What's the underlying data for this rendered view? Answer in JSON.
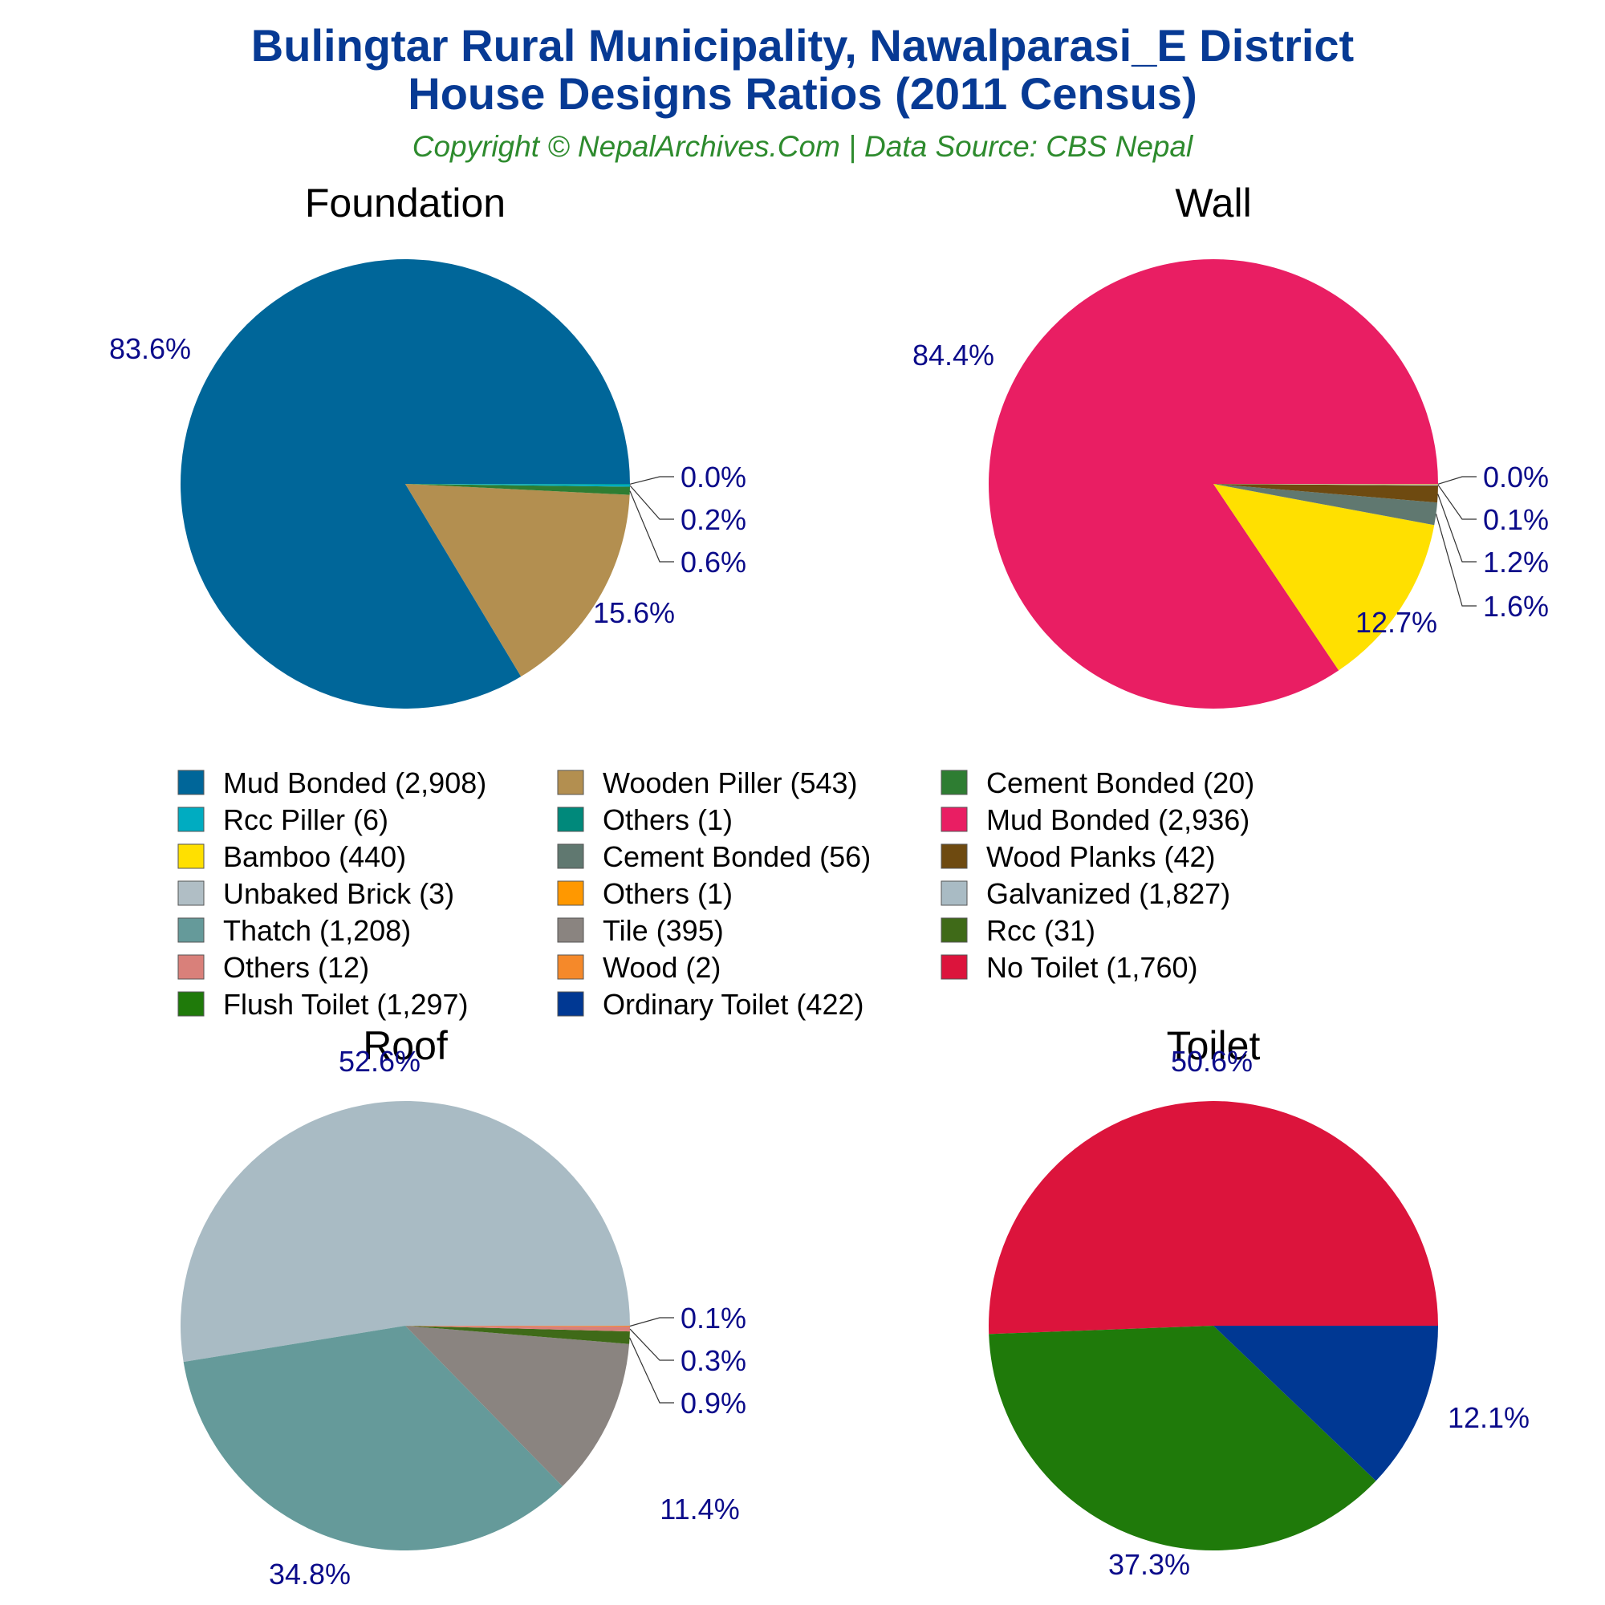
{
  "title_line1": "Bulingtar Rural Municipality, Nawalparasi_E District",
  "title_line2": "House Designs Ratios (2011 Census)",
  "subtitle": "Copyright © NepalArchives.Com | Data Source: CBS Nepal",
  "chart_data": [
    {
      "type": "pie",
      "title": "Foundation",
      "slices": [
        {
          "label": "Mud Bonded",
          "value": 2908,
          "pct": "83.6%",
          "color": "#006699"
        },
        {
          "label": "Wooden Piller",
          "value": 543,
          "pct": "15.6%",
          "color": "#b38f50"
        },
        {
          "label": "Cement Bonded",
          "value": 20,
          "pct": "0.6%",
          "color": "#2e7d32"
        },
        {
          "label": "Rcc Piller",
          "value": 6,
          "pct": "0.2%",
          "color": "#00acc1"
        },
        {
          "label": "Others",
          "value": 1,
          "pct": "0.0%",
          "color": "#00897b"
        }
      ]
    },
    {
      "type": "pie",
      "title": "Wall",
      "slices": [
        {
          "label": "Mud Bonded",
          "value": 2936,
          "pct": "84.4%",
          "color": "#e91e63"
        },
        {
          "label": "Bamboo",
          "value": 440,
          "pct": "12.7%",
          "color": "#ffe000"
        },
        {
          "label": "Cement Bonded",
          "value": 56,
          "pct": "1.6%",
          "color": "#607870"
        },
        {
          "label": "Wood Planks",
          "value": 42,
          "pct": "1.2%",
          "color": "#6e4a10"
        },
        {
          "label": "Unbaked Brick",
          "value": 3,
          "pct": "0.1%",
          "color": "#b0bec5"
        },
        {
          "label": "Others",
          "value": 1,
          "pct": "0.0%",
          "color": "#ff9800"
        }
      ]
    },
    {
      "type": "pie",
      "title": "Roof",
      "slices": [
        {
          "label": "Galvanized",
          "value": 1827,
          "pct": "52.6%",
          "color": "#a9bbc4"
        },
        {
          "label": "Thatch",
          "value": 1208,
          "pct": "34.8%",
          "color": "#659a9a"
        },
        {
          "label": "Tile",
          "value": 395,
          "pct": "11.4%",
          "color": "#8a8480"
        },
        {
          "label": "Rcc",
          "value": 31,
          "pct": "0.9%",
          "color": "#3f6a18"
        },
        {
          "label": "Others",
          "value": 12,
          "pct": "0.3%",
          "color": "#d9807a"
        },
        {
          "label": "Wood",
          "value": 2,
          "pct": "0.1%",
          "color": "#f5892a"
        }
      ]
    },
    {
      "type": "pie",
      "title": "Toilet",
      "slices": [
        {
          "label": "No Toilet",
          "value": 1760,
          "pct": "50.6%",
          "color": "#dc143c"
        },
        {
          "label": "Flush Toilet",
          "value": 1297,
          "pct": "37.3%",
          "color": "#1f7a0a"
        },
        {
          "label": "Ordinary Toilet",
          "value": 422,
          "pct": "12.1%",
          "color": "#003893"
        }
      ]
    }
  ],
  "legend": [
    {
      "text": "Mud Bonded (2,908)",
      "color": "#006699"
    },
    {
      "text": "Wooden Piller (543)",
      "color": "#b38f50"
    },
    {
      "text": "Cement Bonded (20)",
      "color": "#2e7d32"
    },
    {
      "text": "Rcc Piller (6)",
      "color": "#00acc1"
    },
    {
      "text": "Others (1)",
      "color": "#00897b"
    },
    {
      "text": "Mud Bonded (2,936)",
      "color": "#e91e63"
    },
    {
      "text": "Bamboo (440)",
      "color": "#ffe000"
    },
    {
      "text": "Cement Bonded (56)",
      "color": "#607870"
    },
    {
      "text": "Wood Planks (42)",
      "color": "#6e4a10"
    },
    {
      "text": "Unbaked Brick (3)",
      "color": "#b0bec5"
    },
    {
      "text": "Others (1)",
      "color": "#ff9800"
    },
    {
      "text": "Galvanized (1,827)",
      "color": "#a9bbc4"
    },
    {
      "text": "Thatch (1,208)",
      "color": "#659a9a"
    },
    {
      "text": "Tile (395)",
      "color": "#8a8480"
    },
    {
      "text": "Rcc (31)",
      "color": "#3f6a18"
    },
    {
      "text": "Others (12)",
      "color": "#d9807a"
    },
    {
      "text": "Wood (2)",
      "color": "#f5892a"
    },
    {
      "text": "No Toilet (1,760)",
      "color": "#dc143c"
    },
    {
      "text": "Flush Toilet (1,297)",
      "color": "#1f7a0a"
    },
    {
      "text": "Ordinary Toilet (422)",
      "color": "#003893"
    }
  ]
}
